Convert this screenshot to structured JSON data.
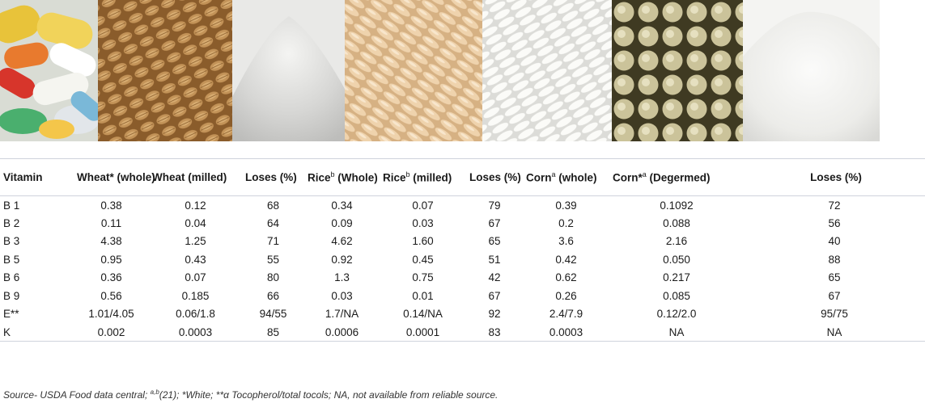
{
  "images": [
    {
      "name": "vitamin-pills-photo"
    },
    {
      "name": "whole-wheat-grains-photo"
    },
    {
      "name": "milled-wheat-flour-photo"
    },
    {
      "name": "whole-brown-rice-photo"
    },
    {
      "name": "milled-white-rice-photo"
    },
    {
      "name": "whole-corn-kernels-photo"
    },
    {
      "name": "degermed-corn-flour-photo"
    }
  ],
  "table": {
    "headers": {
      "vitamin": "Vitamin",
      "wheat_whole": "Wheat* (whole)",
      "wheat_milled": "Wheat (milled)",
      "loses_1": "Loses (%)",
      "rice_whole_main": "Rice",
      "rice_whole_sup": "b",
      "rice_whole_rest": " (Whole)",
      "rice_milled_main": "Rice",
      "rice_milled_sup": "b",
      "rice_milled_rest": " (milled)",
      "loses_2": "Loses (%)",
      "corn_whole_main": "Corn",
      "corn_whole_sup": "a",
      "corn_whole_rest": " (whole)",
      "corn_degermed_main": "Corn*",
      "corn_degermed_sup": "a",
      "corn_degermed_rest": " (Degermed)",
      "loses_3": "Loses (%)"
    },
    "rows": [
      [
        "B 1",
        "0.38",
        "0.12",
        "68",
        "0.34",
        "0.07",
        "79",
        "0.39",
        "0.1092",
        "72"
      ],
      [
        "B 2",
        "0.11",
        "0.04",
        "64",
        "0.09",
        "0.03",
        "67",
        "0.2",
        "0.088",
        "56"
      ],
      [
        "B 3",
        "4.38",
        "1.25",
        "71",
        "4.62",
        "1.60",
        "65",
        "3.6",
        "2.16",
        "40"
      ],
      [
        "B 5",
        "0.95",
        "0.43",
        "55",
        "0.92",
        "0.45",
        "51",
        "0.42",
        "0.050",
        "88"
      ],
      [
        "B 6",
        "0.36",
        "0.07",
        "80",
        "1.3",
        "0.75",
        "42",
        "0.62",
        "0.217",
        "65"
      ],
      [
        "B 9",
        "0.56",
        "0.185",
        "66",
        "0.03",
        "0.01",
        "67",
        "0.26",
        "0.085",
        "67"
      ],
      [
        "E**",
        "1.01/4.05",
        "0.06/1.8",
        "94/55",
        "1.7/NA",
        "0.14/NA",
        "92",
        "2.4/7.9",
        "0.12/2.0",
        "95/75"
      ],
      [
        "K",
        "0.002",
        "0.0003",
        "85",
        "0.0006",
        "0.0001",
        "83",
        "0.0003",
        "NA",
        "NA"
      ]
    ]
  },
  "footnote": {
    "part1": "Source- USDA Food data central; ",
    "sup": "a,b",
    "part2": "(21); *White; **α Tocopherol/total tocols; NA, not available from reliable source."
  },
  "colors": {
    "rule": "#cfd3dc",
    "wheat": "#b98a4f",
    "flour": "#e4e4e2",
    "brown_rice": "#e7c9a2",
    "white_rice": "#f3f3f0",
    "corn": "#cfc79d"
  }
}
